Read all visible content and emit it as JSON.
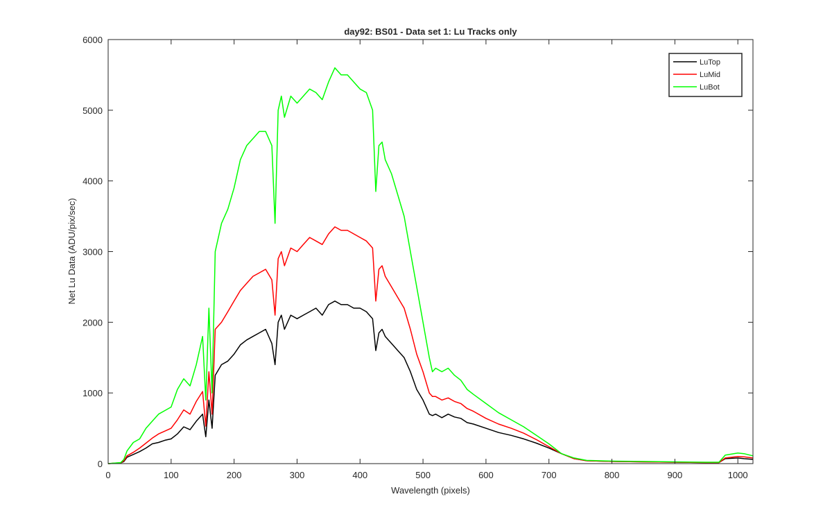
{
  "chart_data": {
    "type": "line",
    "title": "day92: BS01 - Data set 1: Lu Tracks only",
    "xlabel": "Wavelength (pixels)",
    "ylabel": "Net Lu Data (ADU/pix/sec)",
    "xlim": [
      0,
      1024
    ],
    "ylim": [
      0,
      6000
    ],
    "xticks": [
      0,
      100,
      200,
      300,
      400,
      500,
      600,
      700,
      800,
      900,
      1000
    ],
    "yticks": [
      0,
      1000,
      2000,
      3000,
      4000,
      5000,
      6000
    ],
    "grid": false,
    "legend_position": "top-right",
    "series": [
      {
        "name": "LuTop",
        "color": "#000000",
        "x": [
          0,
          20,
          25,
          30,
          40,
          50,
          60,
          70,
          80,
          90,
          100,
          110,
          120,
          130,
          140,
          150,
          155,
          160,
          165,
          170,
          180,
          190,
          200,
          210,
          220,
          230,
          240,
          250,
          260,
          265,
          270,
          275,
          280,
          290,
          300,
          310,
          320,
          330,
          340,
          350,
          360,
          370,
          380,
          390,
          400,
          410,
          420,
          425,
          430,
          435,
          440,
          450,
          460,
          470,
          480,
          490,
          500,
          510,
          515,
          520,
          530,
          540,
          550,
          560,
          570,
          580,
          600,
          620,
          640,
          660,
          680,
          700,
          720,
          740,
          760,
          780,
          800,
          850,
          900,
          950,
          970,
          980,
          1000,
          1010,
          1024
        ],
        "y": [
          0,
          10,
          30,
          90,
          130,
          170,
          220,
          280,
          300,
          330,
          350,
          420,
          520,
          480,
          600,
          700,
          380,
          900,
          500,
          1250,
          1400,
          1450,
          1550,
          1680,
          1750,
          1800,
          1850,
          1900,
          1700,
          1400,
          2000,
          2100,
          1900,
          2100,
          2050,
          2100,
          2150,
          2200,
          2100,
          2250,
          2300,
          2250,
          2250,
          2200,
          2200,
          2150,
          2050,
          1600,
          1850,
          1900,
          1800,
          1700,
          1600,
          1500,
          1300,
          1050,
          900,
          700,
          680,
          700,
          650,
          700,
          660,
          640,
          580,
          560,
          500,
          440,
          400,
          350,
          290,
          220,
          140,
          70,
          40,
          35,
          30,
          25,
          20,
          15,
          15,
          70,
          80,
          70,
          60
        ]
      },
      {
        "name": "LuMid",
        "color": "#ff0000",
        "x": [
          0,
          20,
          25,
          30,
          40,
          50,
          60,
          70,
          80,
          90,
          100,
          110,
          120,
          130,
          140,
          150,
          155,
          160,
          165,
          170,
          180,
          190,
          200,
          210,
          220,
          230,
          240,
          250,
          260,
          265,
          270,
          275,
          280,
          290,
          300,
          310,
          320,
          330,
          340,
          350,
          360,
          370,
          380,
          390,
          400,
          410,
          420,
          425,
          430,
          435,
          440,
          450,
          460,
          470,
          480,
          490,
          500,
          510,
          515,
          520,
          530,
          540,
          550,
          560,
          570,
          580,
          600,
          620,
          640,
          660,
          680,
          700,
          720,
          740,
          760,
          780,
          800,
          850,
          900,
          950,
          970,
          980,
          1000,
          1010,
          1024
        ],
        "y": [
          0,
          12,
          40,
          110,
          160,
          220,
          290,
          360,
          420,
          460,
          500,
          620,
          760,
          700,
          880,
          1020,
          530,
          1300,
          700,
          1900,
          2000,
          2150,
          2300,
          2450,
          2550,
          2650,
          2700,
          2750,
          2600,
          2100,
          2900,
          3000,
          2800,
          3050,
          3000,
          3100,
          3200,
          3150,
          3100,
          3250,
          3350,
          3300,
          3300,
          3250,
          3200,
          3150,
          3050,
          2300,
          2750,
          2800,
          2650,
          2500,
          2350,
          2200,
          1900,
          1550,
          1300,
          1000,
          950,
          950,
          900,
          930,
          880,
          850,
          780,
          740,
          640,
          560,
          500,
          430,
          340,
          240,
          140,
          70,
          40,
          35,
          30,
          25,
          20,
          15,
          15,
          80,
          100,
          95,
          80
        ]
      },
      {
        "name": "LuBot",
        "color": "#00ff00",
        "x": [
          0,
          20,
          25,
          30,
          40,
          50,
          60,
          70,
          80,
          90,
          100,
          110,
          120,
          130,
          140,
          150,
          155,
          160,
          165,
          170,
          180,
          190,
          200,
          210,
          220,
          230,
          240,
          250,
          260,
          265,
          270,
          275,
          280,
          290,
          300,
          310,
          320,
          330,
          340,
          350,
          360,
          370,
          380,
          390,
          400,
          410,
          420,
          425,
          430,
          435,
          440,
          450,
          460,
          470,
          480,
          490,
          500,
          510,
          515,
          520,
          530,
          540,
          550,
          560,
          570,
          580,
          600,
          620,
          640,
          660,
          680,
          700,
          720,
          740,
          760,
          780,
          800,
          850,
          900,
          950,
          970,
          980,
          1000,
          1010,
          1024
        ],
        "y": [
          0,
          15,
          60,
          180,
          300,
          350,
          500,
          600,
          700,
          750,
          800,
          1050,
          1200,
          1100,
          1400,
          1800,
          900,
          2200,
          1000,
          3000,
          3400,
          3600,
          3900,
          4300,
          4500,
          4600,
          4700,
          4700,
          4500,
          3400,
          5000,
          5200,
          4900,
          5200,
          5100,
          5200,
          5300,
          5250,
          5150,
          5400,
          5600,
          5500,
          5500,
          5400,
          5300,
          5250,
          5000,
          3850,
          4500,
          4550,
          4300,
          4100,
          3800,
          3500,
          3000,
          2500,
          2000,
          1500,
          1300,
          1350,
          1300,
          1350,
          1250,
          1180,
          1050,
          980,
          850,
          720,
          620,
          520,
          400,
          280,
          140,
          80,
          45,
          40,
          35,
          30,
          25,
          20,
          20,
          120,
          150,
          140,
          110
        ]
      }
    ]
  }
}
